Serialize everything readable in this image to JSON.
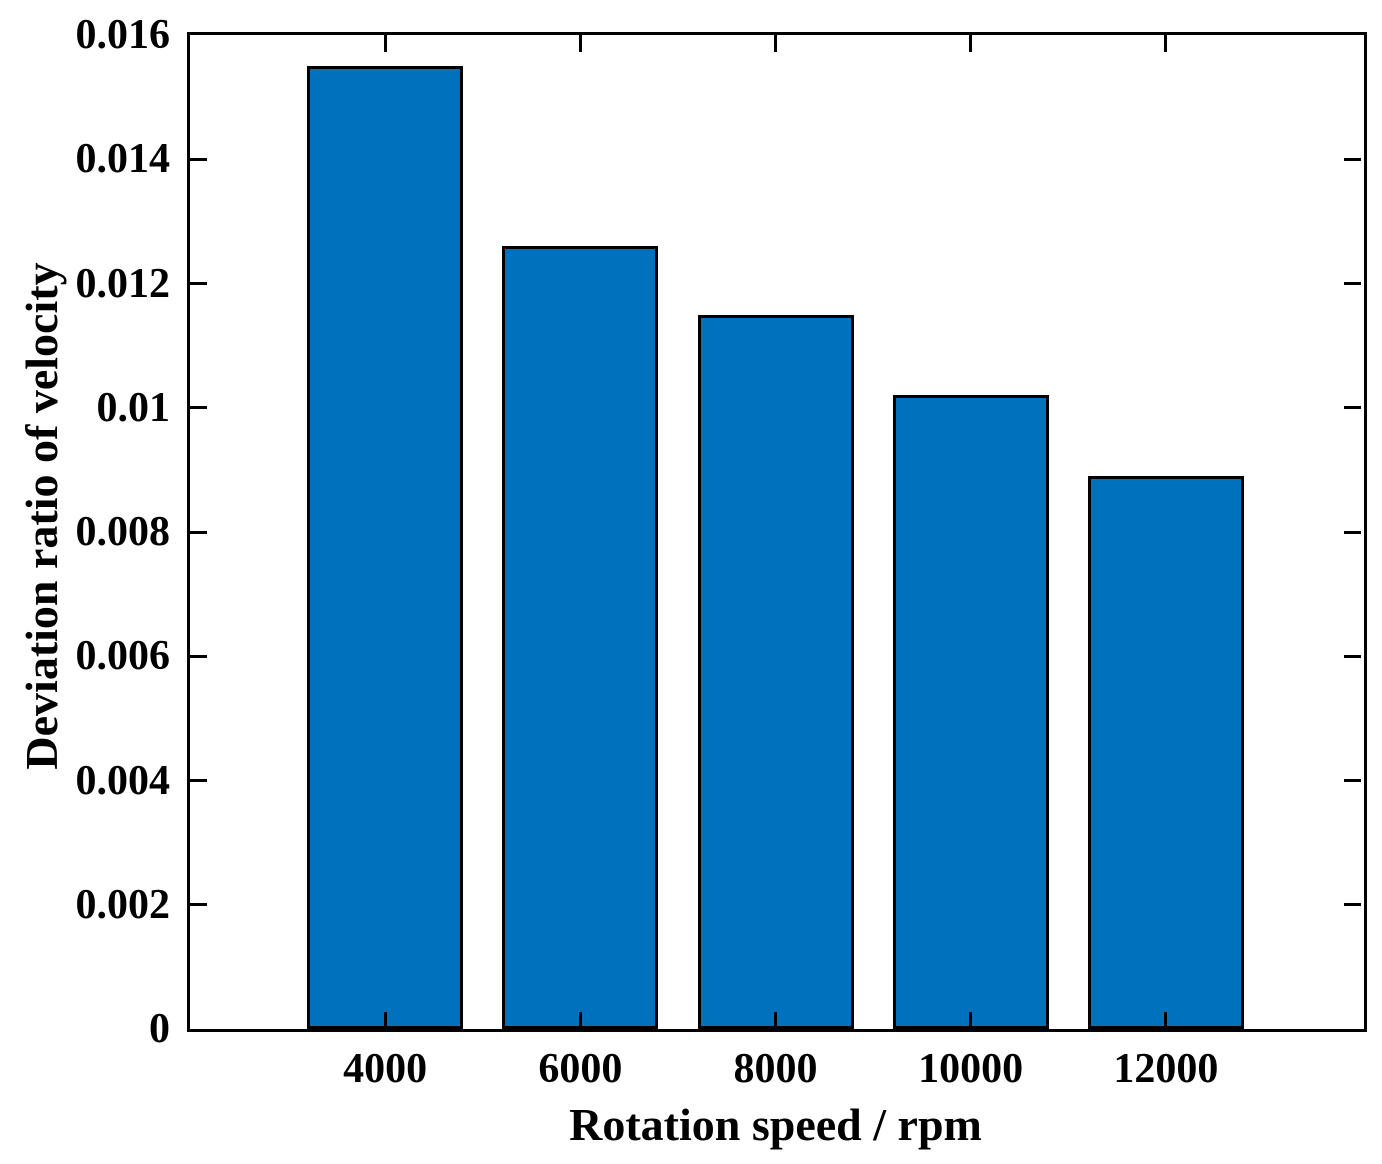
{
  "figure": {
    "background_color": "#ffffff",
    "text_color": "#000000"
  },
  "chart_data": {
    "type": "bar",
    "title": "",
    "categories": [
      "4000",
      "6000",
      "8000",
      "10000",
      "12000"
    ],
    "values": [
      0.0155,
      0.0126,
      0.0115,
      0.0102,
      0.0089
    ],
    "xlabel": "Rotation speed / rpm",
    "ylabel": "Deviation ratio of velocity",
    "xlim_rpm": [
      2000,
      14000
    ],
    "ylim": [
      0,
      0.016
    ],
    "yticks": [
      0,
      0.002,
      0.004,
      0.006,
      0.008,
      0.01,
      0.012,
      0.014,
      0.016
    ],
    "ytick_labels": [
      "0",
      "0.002",
      "0.004",
      "0.006",
      "0.008",
      "0.01",
      "0.012",
      "0.014",
      "0.016"
    ],
    "grid": false,
    "legend": null,
    "bar_color": "#0072BD",
    "bar_edge_color": "#000000",
    "axis_color": "#000000",
    "tick_direction": "in",
    "box": true
  }
}
